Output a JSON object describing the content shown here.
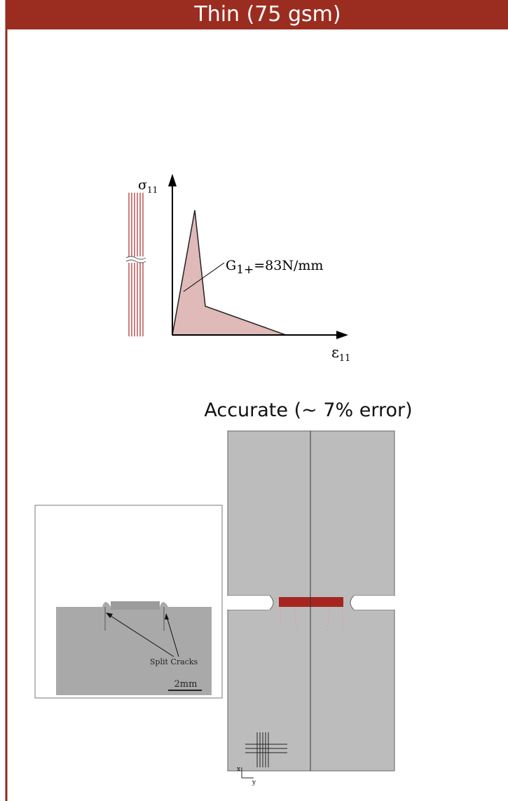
{
  "header": {
    "title": "Thin (75 gsm)"
  },
  "diagram": {
    "y_axis_label": {
      "symbol": "σ",
      "subscript": "11"
    },
    "x_axis_label": {
      "symbol": "ε",
      "subscript": "11"
    },
    "energy_label": {
      "symbol": "G",
      "subscript": "1+",
      "rest": "=83N/mm"
    }
  },
  "caption": "Accurate (~ 7% error)",
  "photo": {
    "annotation": "Split Cracks",
    "scale_bar": "2mm"
  },
  "simulation": {
    "axis_x": "x",
    "axis_y": "y"
  }
}
